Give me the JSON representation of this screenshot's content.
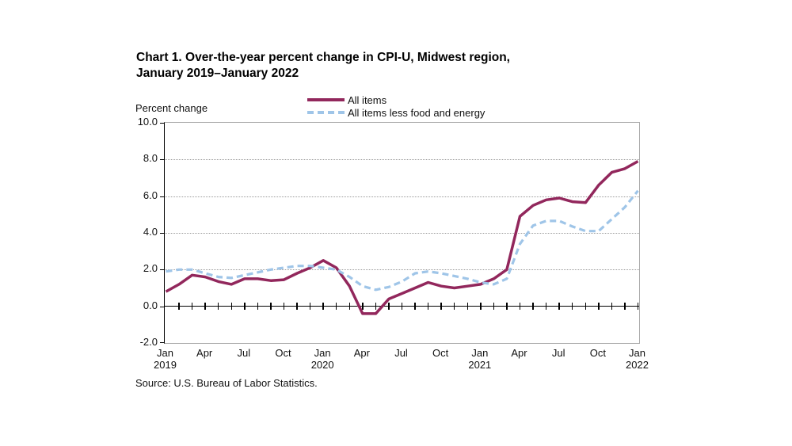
{
  "title": {
    "line1": "Chart 1. Over-the-year percent change in CPI-U, Midwest region,",
    "line2": "January 2019–January 2022"
  },
  "y_axis_title": "Percent change",
  "source": "Source: U.S. Bureau of Labor Statistics.",
  "legend": {
    "items": [
      {
        "label": "All items",
        "style": "solid",
        "color": "#92275C"
      },
      {
        "label": "All items less food and energy",
        "style": "dashed",
        "color": "#9FC5E8"
      }
    ]
  },
  "colors": {
    "all_items": "#92275C",
    "all_items_less_food_energy": "#9FC5E8",
    "gridline": "#9a9a9a",
    "axis": "#000000"
  },
  "chart_data": {
    "type": "line",
    "title": "Chart 1. Over-the-year percent change in CPI-U, Midwest region, January 2019–January 2022",
    "xlabel": "",
    "ylabel": "Percent change",
    "ylim": [
      -2.0,
      10.0
    ],
    "y_ticks": [
      10.0,
      8.0,
      6.0,
      4.0,
      2.0,
      0.0,
      -2.0
    ],
    "grid": "horizontal",
    "legend_position": "top",
    "x": [
      "Jan 2019",
      "Feb 2019",
      "Mar 2019",
      "Apr 2019",
      "May 2019",
      "Jun 2019",
      "Jul 2019",
      "Aug 2019",
      "Sep 2019",
      "Oct 2019",
      "Nov 2019",
      "Dec 2019",
      "Jan 2020",
      "Feb 2020",
      "Mar 2020",
      "Apr 2020",
      "May 2020",
      "Jun 2020",
      "Jul 2020",
      "Aug 2020",
      "Sep 2020",
      "Oct 2020",
      "Nov 2020",
      "Dec 2020",
      "Jan 2021",
      "Feb 2021",
      "Mar 2021",
      "Apr 2021",
      "May 2021",
      "Jun 2021",
      "Jul 2021",
      "Aug 2021",
      "Sep 2021",
      "Oct 2021",
      "Nov 2021",
      "Dec 2021",
      "Jan 2022"
    ],
    "x_tick_labels": [
      {
        "index": 0,
        "label": "Jan",
        "year": "2019"
      },
      {
        "index": 3,
        "label": "Apr"
      },
      {
        "index": 6,
        "label": "Jul"
      },
      {
        "index": 9,
        "label": "Oct"
      },
      {
        "index": 12,
        "label": "Jan",
        "year": "2020"
      },
      {
        "index": 15,
        "label": "Apr"
      },
      {
        "index": 18,
        "label": "Jul"
      },
      {
        "index": 21,
        "label": "Oct"
      },
      {
        "index": 24,
        "label": "Jan",
        "year": "2021"
      },
      {
        "index": 27,
        "label": "Apr"
      },
      {
        "index": 30,
        "label": "Jul"
      },
      {
        "index": 33,
        "label": "Oct"
      },
      {
        "index": 36,
        "label": "Jan",
        "year": "2022"
      }
    ],
    "series": [
      {
        "name": "All items",
        "style": "solid",
        "color": "#92275C",
        "values": [
          0.8,
          1.2,
          1.7,
          1.6,
          1.35,
          1.2,
          1.5,
          1.5,
          1.4,
          1.45,
          1.8,
          2.1,
          2.5,
          2.1,
          1.1,
          -0.4,
          -0.4,
          0.4,
          0.7,
          1.0,
          1.3,
          1.1,
          1.0,
          1.1,
          1.2,
          1.5,
          2.0,
          4.9,
          5.5,
          5.8,
          5.9,
          5.7,
          5.65,
          6.6,
          7.3,
          7.5,
          7.9
        ]
      },
      {
        "name": "All items less food and energy",
        "style": "dashed",
        "color": "#9FC5E8",
        "values": [
          1.9,
          2.0,
          2.0,
          1.8,
          1.6,
          1.55,
          1.7,
          1.85,
          2.0,
          2.1,
          2.2,
          2.2,
          2.1,
          2.0,
          1.6,
          1.1,
          0.9,
          1.05,
          1.35,
          1.8,
          1.9,
          1.8,
          1.65,
          1.5,
          1.3,
          1.2,
          1.5,
          3.4,
          4.4,
          4.65,
          4.65,
          4.35,
          4.1,
          4.1,
          4.75,
          5.4,
          6.3
        ]
      }
    ]
  }
}
